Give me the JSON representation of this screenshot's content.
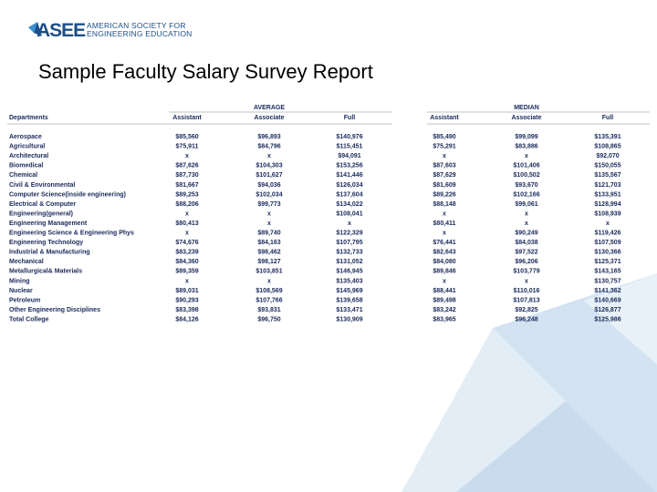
{
  "logo": {
    "mark": "ASEE",
    "line1": "AMERICAN SOCIETY FOR",
    "line2": "ENGINEERING EDUCATION"
  },
  "title": "Sample Faculty Salary Survey Report",
  "table": {
    "group_headers": [
      "AVERAGE",
      "MEDIAN"
    ],
    "columns": [
      "Departments",
      "Assistant",
      "Associate",
      "Full",
      "Assistant",
      "Associate",
      "Full"
    ],
    "rows": [
      [
        "Aerospace",
        "$85,560",
        "$96,893",
        "$140,976",
        "$85,490",
        "$99,099",
        "$135,391"
      ],
      [
        "Agricultural",
        "$75,911",
        "$84,796",
        "$115,451",
        "$75,291",
        "$83,886",
        "$108,865"
      ],
      [
        "Architectural",
        "x",
        "x",
        "$94,091",
        "x",
        "x",
        "$92,070"
      ],
      [
        "Biomedical",
        "$87,626",
        "$104,303",
        "$153,256",
        "$87,603",
        "$101,406",
        "$150,055"
      ],
      [
        "Chemical",
        "$87,730",
        "$101,627",
        "$141,446",
        "$87,629",
        "$100,502",
        "$135,567"
      ],
      [
        "Civil & Environmental",
        "$81,667",
        "$94,036",
        "$126,034",
        "$81,609",
        "$93,670",
        "$121,703"
      ],
      [
        "Computer Science(inside engineering)",
        "$89,253",
        "$102,034",
        "$137,604",
        "$89,226",
        "$102,166",
        "$133,951"
      ],
      [
        "Electrical & Computer",
        "$88,206",
        "$99,773",
        "$134,022",
        "$88,148",
        "$99,061",
        "$128,994"
      ],
      [
        "Engineering(general)",
        "x",
        "x",
        "$108,041",
        "x",
        "x",
        "$108,939"
      ],
      [
        "Engineering Management",
        "$80,413",
        "x",
        "x",
        "$80,411",
        "x",
        "x"
      ],
      [
        "Engineering Science & Engineering Phys",
        "x",
        "$89,740",
        "$122,329",
        "x",
        "$90,249",
        "$119,426"
      ],
      [
        "Engineering Technology",
        "$74,676",
        "$84,163",
        "$107,795",
        "$76,441",
        "$84,038",
        "$107,509"
      ],
      [
        "Industrial & Manufacturing",
        "$83,239",
        "$98,462",
        "$132,733",
        "$82,643",
        "$97,522",
        "$130,366"
      ],
      [
        "Mechanical",
        "$84,360",
        "$98,127",
        "$131,052",
        "$84,080",
        "$96,206",
        "$125,371"
      ],
      [
        "Metallurgical& Materials",
        "$89,359",
        "$103,851",
        "$146,945",
        "$89,846",
        "$103,779",
        "$143,165"
      ],
      [
        "Mining",
        "x",
        "x",
        "$135,403",
        "x",
        "x",
        "$130,757"
      ],
      [
        "Nuclear",
        "$89,031",
        "$108,569",
        "$145,969",
        "$88,441",
        "$110,016",
        "$141,362"
      ],
      [
        "Petroleum",
        "$90,293",
        "$107,766",
        "$139,658",
        "$89,498",
        "$107,813",
        "$140,669"
      ],
      [
        "Other Engineering Disciplines",
        "$83,398",
        "$93,831",
        "$133,471",
        "$83,242",
        "$92,825",
        "$126,877"
      ],
      [
        "Total College",
        "$84,126",
        "$96,750",
        "$130,909",
        "$83,965",
        "$96,248",
        "$125,986"
      ]
    ]
  }
}
